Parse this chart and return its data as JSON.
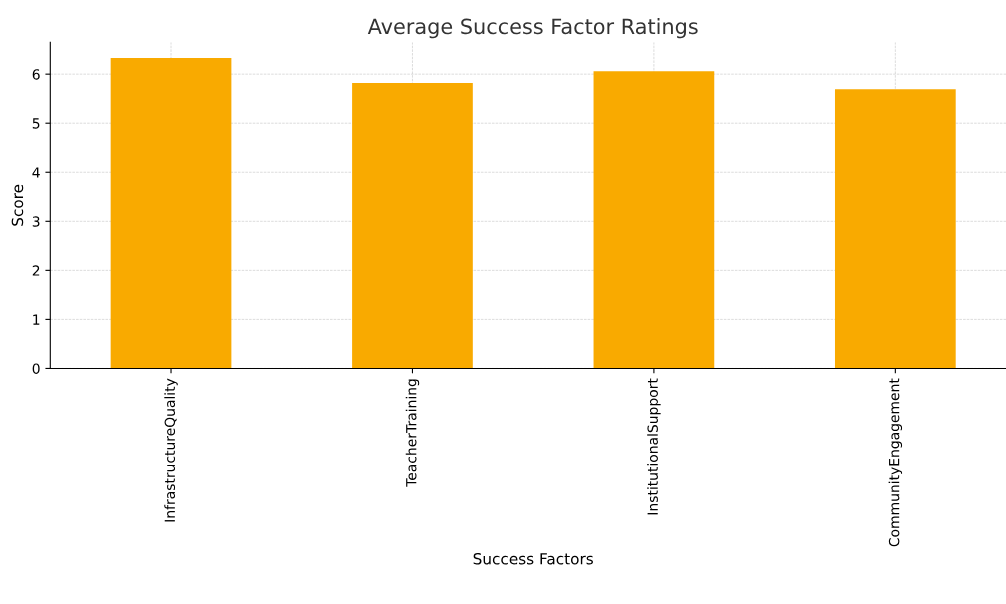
{
  "chart_data": {
    "type": "bar",
    "title": "Average Success Factor Ratings",
    "xlabel": "Success Factors",
    "ylabel": "Score",
    "categories": [
      "InfrastructureQuality",
      "TeacherTraining",
      "InstitutionalSupport",
      "CommunityEngagement"
    ],
    "values": [
      6.33,
      5.82,
      6.06,
      5.69
    ],
    "color": "#f9aa00",
    "ylim": [
      0,
      6.65
    ],
    "yticks": [
      0,
      1,
      2,
      3,
      4,
      5,
      6
    ],
    "grid": true
  }
}
